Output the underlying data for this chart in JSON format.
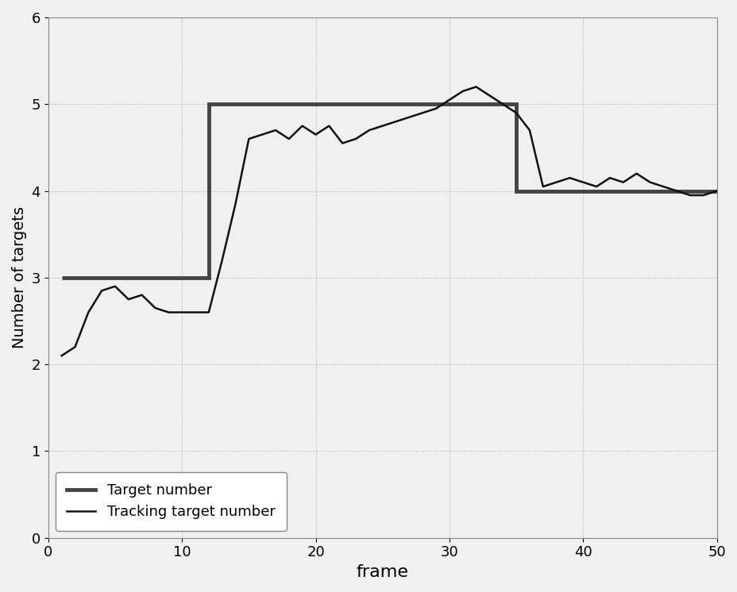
{
  "title": "",
  "xlabel": "frame",
  "ylabel": "Number of targets",
  "xlim": [
    0,
    50
  ],
  "ylim": [
    0,
    6
  ],
  "xticks": [
    0,
    10,
    20,
    30,
    40,
    50
  ],
  "yticks": [
    0,
    1,
    2,
    3,
    4,
    5,
    6
  ],
  "target_number_x": [
    1,
    12,
    12,
    35,
    35,
    50
  ],
  "target_number_y": [
    3,
    3,
    5,
    5,
    4,
    4
  ],
  "tracking_x": [
    1,
    2,
    3,
    4,
    5,
    6,
    7,
    8,
    9,
    10,
    11,
    12,
    13,
    14,
    15,
    16,
    17,
    18,
    19,
    20,
    21,
    22,
    23,
    24,
    25,
    26,
    27,
    28,
    29,
    30,
    31,
    32,
    33,
    34,
    35,
    36,
    37,
    38,
    39,
    40,
    41,
    42,
    43,
    44,
    45,
    46,
    47,
    48,
    49,
    50
  ],
  "tracking_y": [
    2.1,
    2.2,
    2.6,
    2.85,
    2.9,
    2.75,
    2.8,
    2.65,
    2.6,
    2.6,
    2.6,
    2.6,
    3.2,
    3.85,
    4.6,
    4.65,
    4.7,
    4.6,
    4.75,
    4.65,
    4.75,
    4.55,
    4.6,
    4.7,
    4.75,
    4.8,
    4.85,
    4.9,
    4.95,
    5.05,
    5.15,
    5.2,
    5.1,
    5.0,
    4.9,
    4.7,
    4.05,
    4.1,
    4.15,
    4.1,
    4.05,
    4.15,
    4.1,
    4.2,
    4.1,
    4.05,
    4.0,
    3.95,
    3.95,
    4.0
  ],
  "target_color": "#444444",
  "tracking_color": "#111111",
  "target_linewidth": 3.5,
  "tracking_linewidth": 1.8,
  "grid_color": "#aaaaaa",
  "background_color": "#f0f0f0",
  "plot_bg_color": "#f0f0f0",
  "legend_labels": [
    "Target number",
    "Tracking target number"
  ],
  "figsize": [
    9.29,
    7.46
  ],
  "dpi": 100,
  "xlabel_fontsize": 16,
  "ylabel_fontsize": 14,
  "tick_fontsize": 13,
  "legend_fontsize": 13
}
